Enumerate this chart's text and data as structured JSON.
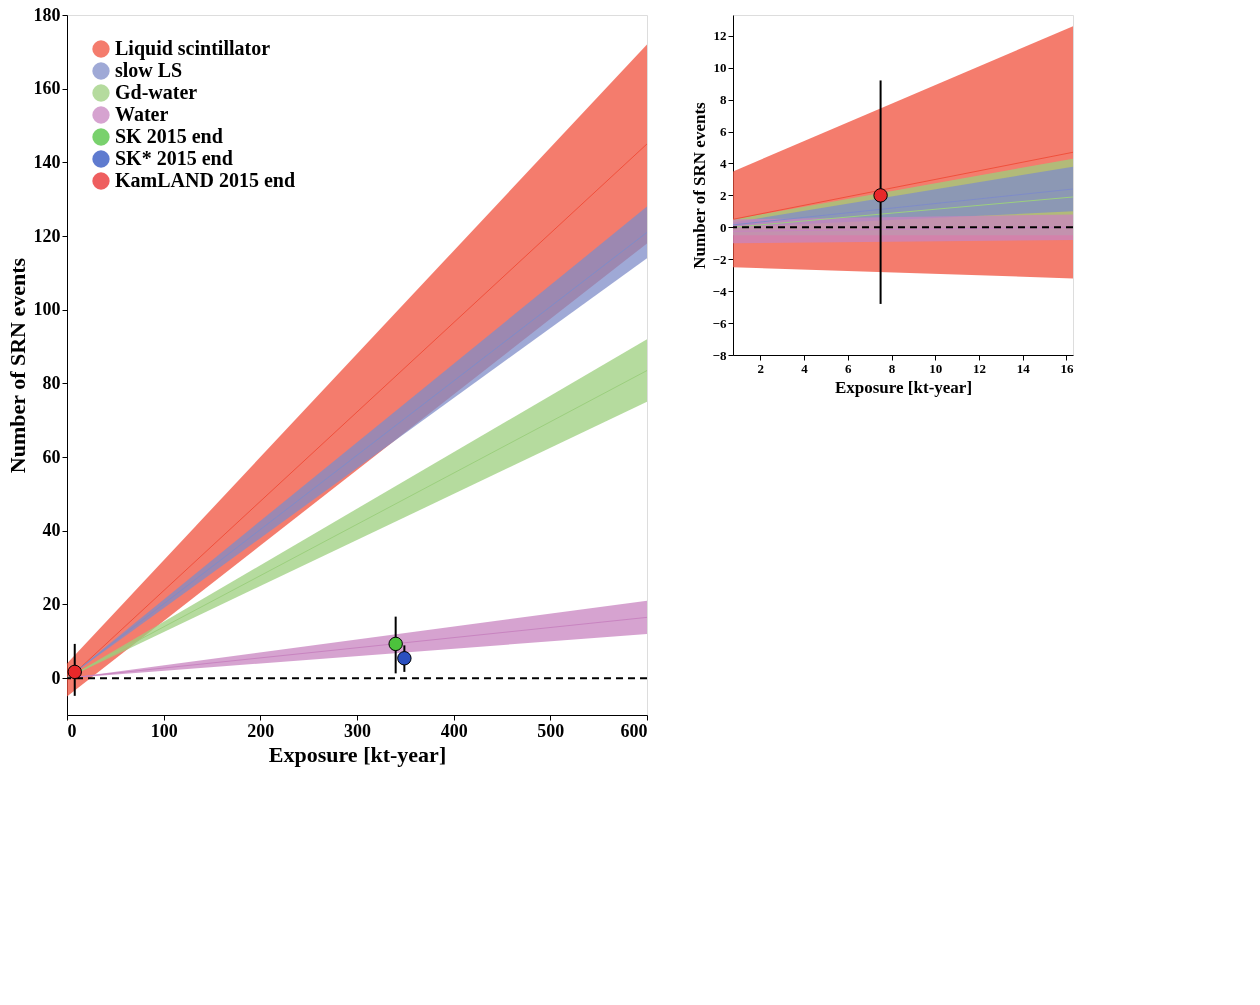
{
  "chart_data": [
    {
      "type": "line",
      "xlabel": "Exposure [kt-year]",
      "ylabel": "Number of SRN events",
      "xlim": [
        0,
        600
      ],
      "ylim": [
        -10,
        180
      ],
      "xticks": [
        0,
        100,
        200,
        300,
        400,
        500,
        600
      ],
      "yticks": [
        0,
        20,
        40,
        60,
        80,
        100,
        120,
        140,
        160,
        180
      ],
      "grid": false,
      "legend": "top left",
      "series": [
        {
          "name": "Liquid scintillator",
          "color": "#f0503c",
          "x": [
            0,
            600
          ],
          "values": [
            -0.5,
            145
          ],
          "lower": [
            -5,
            118
          ],
          "upper": [
            4,
            172
          ]
        },
        {
          "name": "slow LS",
          "color": "#7f8cc8",
          "x": [
            0,
            600
          ],
          "values": [
            0,
            121
          ],
          "lower": [
            0,
            114
          ],
          "upper": [
            0,
            128
          ]
        },
        {
          "name": "Gd-water",
          "color": "#9ccf7e",
          "x": [
            0,
            600
          ],
          "values": [
            0,
            83.5
          ],
          "lower": [
            0,
            75
          ],
          "upper": [
            0,
            92
          ]
        },
        {
          "name": "Water",
          "color": "#c884c0",
          "x": [
            0,
            600
          ],
          "values": [
            0,
            16.5
          ],
          "lower": [
            0,
            12
          ],
          "upper": [
            0,
            21
          ]
        },
        {
          "name": "SK 2015 end",
          "color": "#4cc23c",
          "type": "scatter",
          "x": [
            340
          ],
          "values": [
            9.3
          ],
          "errors": [
            [
              1.3,
              16.7
            ]
          ]
        },
        {
          "name": "SK* 2015 end",
          "color": "#2a4fbf",
          "type": "scatter",
          "x": [
            349
          ],
          "values": [
            5.4
          ],
          "errors": [
            [
              1.7,
              8.9
            ]
          ]
        },
        {
          "name": "KamLAND 2015 end",
          "color": "#e8282a",
          "type": "scatter",
          "x": [
            8
          ],
          "values": [
            1.7
          ],
          "errors": [
            [
              -4.8,
              9.3
            ]
          ]
        }
      ],
      "ref_lines": [
        {
          "axis": "y",
          "value": 0,
          "line_style": "dashed",
          "color": "#000000"
        }
      ]
    },
    {
      "type": "line",
      "xlabel": "Exposure [kt-year]",
      "ylabel": "Number of SRN events",
      "xlim": [
        0.75,
        16.3
      ],
      "ylim": [
        -8,
        13.3
      ],
      "xticks": [
        2,
        4,
        6,
        8,
        10,
        12,
        14,
        16
      ],
      "yticks": [
        -8,
        -6,
        -4,
        -2,
        0,
        2,
        4,
        6,
        8,
        10,
        12
      ],
      "grid": false,
      "series": [
        {
          "color": "#f0503c",
          "x": [
            0.75,
            16.3
          ],
          "values": [
            0.5,
            4.7
          ],
          "lower": [
            -2.5,
            -3.2
          ],
          "upper": [
            3.5,
            12.6
          ]
        },
        {
          "color": "#9ccf7e",
          "x": [
            0.75,
            16.3
          ],
          "values": [
            0,
            1.9
          ],
          "lower": [
            -0.5,
            -0.5
          ],
          "upper": [
            0.5,
            4.3
          ]
        },
        {
          "color": "#7f8cc8",
          "x": [
            0.75,
            16.3
          ],
          "values": [
            0.15,
            2.4
          ],
          "lower": [
            0,
            1
          ],
          "upper": [
            0.3,
            3.8
          ]
        },
        {
          "color": "#c884c0",
          "x": [
            0.75,
            16.3
          ],
          "values": [
            -0.25,
            0
          ],
          "lower": [
            -1,
            -0.8
          ],
          "upper": [
            0.5,
            0.8
          ]
        },
        {
          "color": "#e8282a",
          "type": "scatter",
          "x": [
            7.5
          ],
          "values": [
            2
          ],
          "errors": [
            [
              -4.8,
              9.2
            ]
          ]
        }
      ],
      "ref_lines": [
        {
          "axis": "y",
          "value": 0,
          "line_style": "dashed",
          "color": "#000000"
        }
      ]
    }
  ]
}
